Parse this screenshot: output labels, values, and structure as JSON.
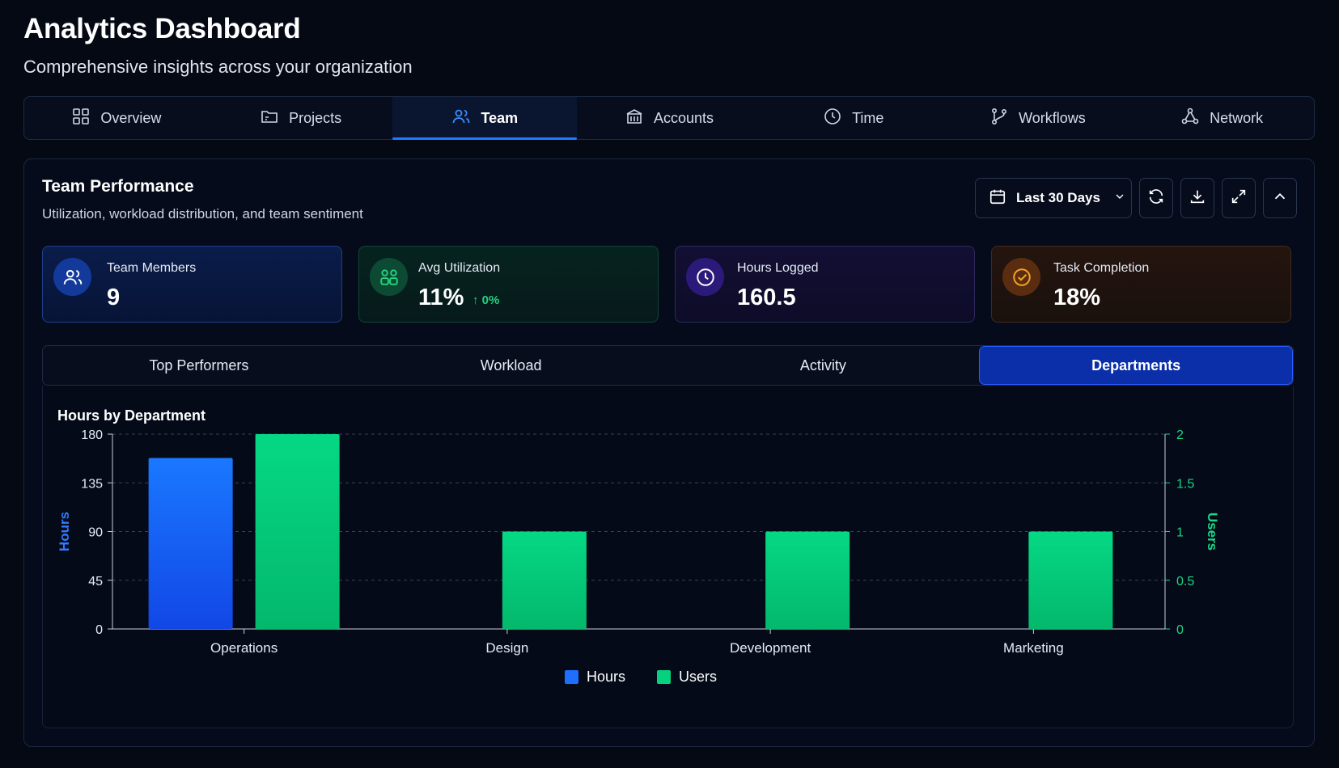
{
  "header": {
    "title": "Analytics Dashboard",
    "subtitle": "Comprehensive insights across your organization"
  },
  "nav": {
    "items": [
      {
        "label": "Overview",
        "icon": "grid-icon"
      },
      {
        "label": "Projects",
        "icon": "folder-icon"
      },
      {
        "label": "Team",
        "icon": "users-icon",
        "active": true
      },
      {
        "label": "Accounts",
        "icon": "bank-icon"
      },
      {
        "label": "Time",
        "icon": "clock-icon"
      },
      {
        "label": "Workflows",
        "icon": "git-branch-icon"
      },
      {
        "label": "Network",
        "icon": "network-icon"
      }
    ]
  },
  "panel": {
    "title": "Team Performance",
    "subtitle": "Utilization, workload distribution, and team sentiment",
    "range_label": "Last 30 Days",
    "actions": [
      "refresh-icon",
      "download-icon",
      "expand-icon",
      "chevron-up-icon"
    ]
  },
  "stats": [
    {
      "label": "Team Members",
      "value": "9",
      "icon": "users-icon",
      "color": "#3b82f6"
    },
    {
      "label": "Avg Utilization",
      "value": "11%",
      "delta": "0%",
      "icon": "users-group-icon",
      "color": "#22d37f"
    },
    {
      "label": "Hours Logged",
      "value": "160.5",
      "icon": "clock-icon",
      "color": "#8b5cf6"
    },
    {
      "label": "Task Completion",
      "value": "18%",
      "icon": "check-circle-icon",
      "color": "#f59e0b"
    }
  ],
  "subtabs": {
    "items": [
      "Top Performers",
      "Workload",
      "Activity",
      "Departments"
    ],
    "active": "Departments"
  },
  "chart_data": {
    "type": "bar",
    "title": "Hours by Department",
    "categories": [
      "Operations",
      "Design",
      "Development",
      "Marketing"
    ],
    "series": [
      {
        "name": "Hours",
        "axis": "left",
        "color": "#1f6fff",
        "values": [
          158,
          0,
          0,
          0
        ]
      },
      {
        "name": "Users",
        "axis": "right",
        "color": "#06d17f",
        "values": [
          2,
          1,
          1,
          1
        ]
      }
    ],
    "ylabel": "Hours",
    "y2label": "Users",
    "ylim": [
      0,
      180
    ],
    "y2lim": [
      0,
      2
    ],
    "yticks": [
      "0",
      "45",
      "90",
      "135",
      "180"
    ],
    "y2ticks": [
      "0",
      "0.5",
      "1",
      "1.5",
      "2"
    ],
    "grid": true,
    "legend_position": "bottom-center",
    "colors": {
      "left_axis": "#2f7bff",
      "right_axis": "#18d785"
    }
  }
}
